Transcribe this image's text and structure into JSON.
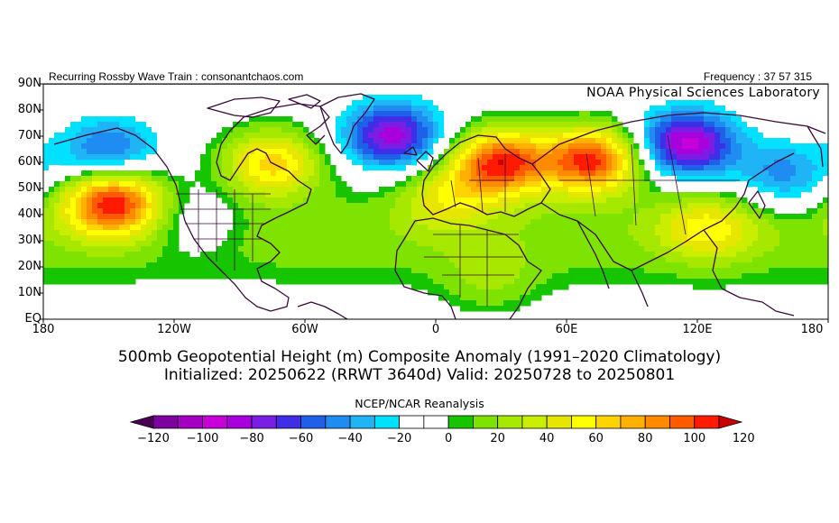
{
  "header": {
    "left": "Recurring Rossby Wave Train : consonantchaos.com",
    "right": "Frequency : 37 57 315",
    "lab": "NOAA Physical Sciences Laboratory"
  },
  "map": {
    "lat_labels": [
      "90N",
      "80N",
      "70N",
      "60N",
      "50N",
      "40N",
      "30N",
      "20N",
      "10N",
      "EQ"
    ],
    "lon_labels": [
      "180",
      "120W",
      "60W",
      "0",
      "60E",
      "120E",
      "180"
    ]
  },
  "title": {
    "line1": "500mb Geopotential Height (m) Composite Anomaly (1991–2020 Climatology)",
    "line2": "Initialized: 20250622 (RRWT 3640d) Valid: 20250728 to 20250801"
  },
  "colorbar": {
    "title": "NCEP/NCAR Reanalysis",
    "labels": [
      "−120",
      "−100",
      "−80",
      "−60",
      "−40",
      "−20",
      "0",
      "20",
      "40",
      "60",
      "80",
      "100",
      "120"
    ],
    "colors": [
      "#4b0055",
      "#7e00a0",
      "#a300c2",
      "#c700d9",
      "#a800dc",
      "#7a1ee6",
      "#3e2ee8",
      "#1f60e8",
      "#1e8cf0",
      "#1eb4f5",
      "#00e0ff",
      "#ffffff",
      "#ffffff",
      "#17c400",
      "#7ee300",
      "#a6e800",
      "#c9ee00",
      "#e6e600",
      "#ffff00",
      "#ffd400",
      "#ffb000",
      "#ff8a00",
      "#ff5a00",
      "#ff1a00",
      "#c80000"
    ]
  },
  "chart_data": {
    "type": "heatmap",
    "variable": "500mb Geopotential Height (m) Composite Anomaly",
    "lon_range": [
      -180,
      180
    ],
    "lat_range": [
      0,
      90
    ],
    "scale_range": [
      -120,
      120
    ],
    "anomaly_centers": [
      {
        "lon": -148,
        "lat": 45,
        "value": 110
      },
      {
        "lon": -150,
        "lat": 64,
        "value": -55
      },
      {
        "lon": -112,
        "lat": 37,
        "value": -25
      },
      {
        "lon": -75,
        "lat": 60,
        "value": 70
      },
      {
        "lon": -20,
        "lat": 70,
        "value": -85
      },
      {
        "lon": 30,
        "lat": 60,
        "value": 110
      },
      {
        "lon": 72,
        "lat": 61,
        "value": 110
      },
      {
        "lon": 115,
        "lat": 67,
        "value": -95
      },
      {
        "lon": 160,
        "lat": 55,
        "value": -45
      },
      {
        "lon": 5,
        "lat": 47,
        "value": 40
      },
      {
        "lon": 125,
        "lat": 35,
        "value": 45
      },
      {
        "lon": 25,
        "lat": 15,
        "value": 20
      }
    ]
  }
}
